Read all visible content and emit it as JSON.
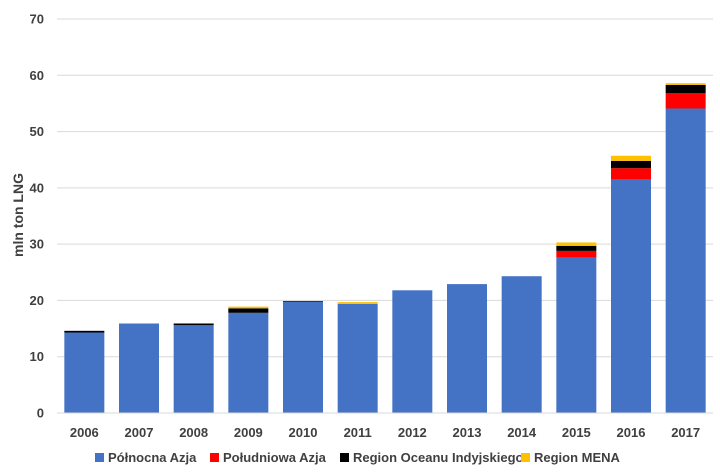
{
  "chart_data": {
    "type": "bar",
    "stacked": true,
    "title": "",
    "xlabel": "",
    "ylabel": "mln ton LNG",
    "ylim": [
      0,
      70
    ],
    "yticks": [
      0,
      10,
      20,
      30,
      40,
      50,
      60,
      70
    ],
    "grid": "horizontal",
    "legend_position": "bottom",
    "categories": [
      "2006",
      "2007",
      "2008",
      "2009",
      "2010",
      "2011",
      "2012",
      "2013",
      "2014",
      "2015",
      "2016",
      "2017"
    ],
    "series": [
      {
        "name": "Północna Azja",
        "color": "#4472C4",
        "values": [
          14.3,
          15.9,
          15.6,
          17.8,
          19.8,
          19.4,
          21.8,
          22.9,
          24.3,
          27.6,
          41.5,
          54.1
        ]
      },
      {
        "name": "Południowa Azja",
        "color": "#FF0000",
        "values": [
          0,
          0,
          0,
          0,
          0,
          0,
          0,
          0,
          0,
          1.2,
          2.0,
          2.7
        ]
      },
      {
        "name": "Region Oceanu Indyjskiego",
        "color": "#000000",
        "values": [
          0.3,
          0,
          0.3,
          0.8,
          0.1,
          0,
          0,
          0,
          0,
          0.9,
          1.3,
          1.5
        ]
      },
      {
        "name": "Region MENA",
        "color": "#FFC000",
        "values": [
          0,
          0,
          0,
          0.3,
          0,
          0.3,
          0,
          0,
          0,
          0.6,
          0.9,
          0.3
        ]
      }
    ]
  }
}
